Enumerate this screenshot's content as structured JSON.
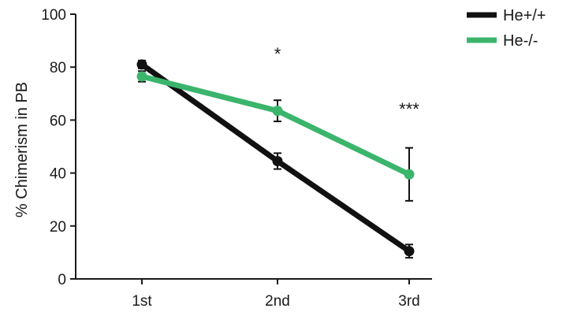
{
  "chart_data": {
    "type": "line",
    "title": "",
    "xlabel": "",
    "ylabel": "% Chimerism in PB",
    "categories": [
      "1st",
      "2nd",
      "3rd"
    ],
    "ylim": [
      0,
      100
    ],
    "yticks": [
      0,
      20,
      40,
      60,
      80,
      100
    ],
    "grid": false,
    "legend_position": "top-right",
    "series": [
      {
        "name": "He+/+",
        "color": "#111111",
        "values": [
          81,
          44.5,
          10.5
        ],
        "error": [
          1.5,
          3,
          2.5
        ]
      },
      {
        "name": "He-/-",
        "color": "#3bb56c",
        "values": [
          76.5,
          63.5,
          39.5
        ],
        "error": [
          2,
          4,
          10
        ]
      }
    ],
    "annotations": [
      {
        "category": "2nd",
        "text": "*"
      },
      {
        "category": "3rd",
        "text": "***"
      }
    ]
  }
}
